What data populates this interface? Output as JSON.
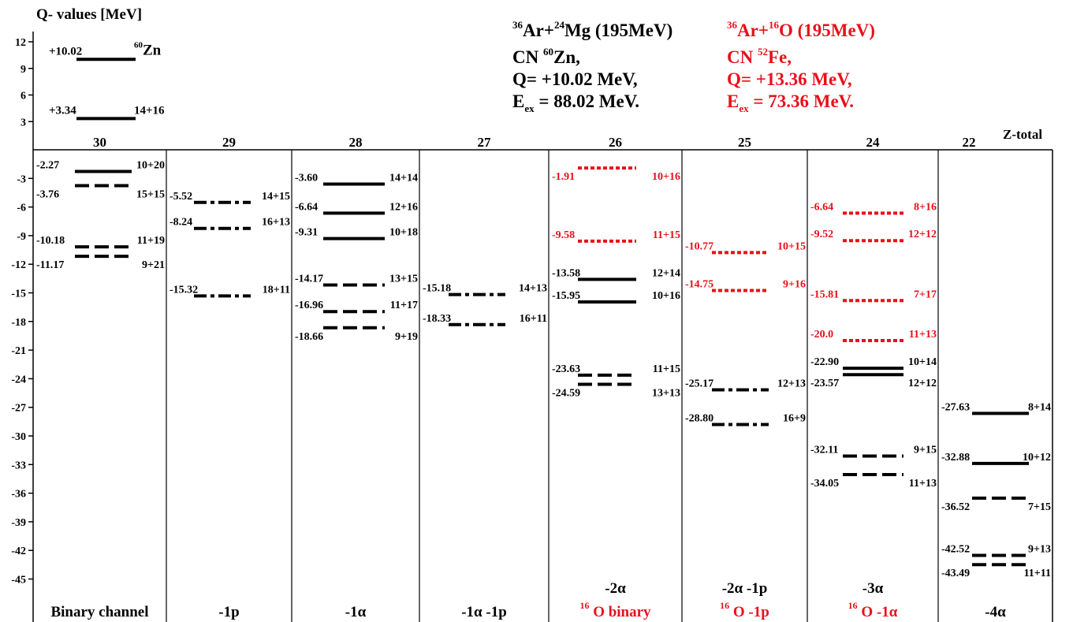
{
  "axis_title": "Q- values [MeV]",
  "z_total_label": "Z-total",
  "colors": {
    "black": "#000000",
    "red": "#e8101a"
  },
  "reaction_black": {
    "title": {
      "a_mass": "36",
      "a": "Ar+",
      "b_mass": "24",
      "b": "Mg (195MeV)"
    },
    "cn": {
      "prefix": "CN ",
      "mass": "60",
      "nucleus": "Zn,"
    },
    "q": "Q= +10.02 MeV,",
    "ex_main": "E",
    "ex_sub": "ex",
    "ex_rest": " = 88.02 MeV."
  },
  "reaction_red": {
    "title": {
      "a_mass": "36",
      "a": "Ar+",
      "b_mass": "16",
      "b": "O (195MeV)"
    },
    "cn": {
      "prefix": "CN ",
      "mass": "52",
      "nucleus": "Fe,"
    },
    "q": "Q= +13.36 MeV,",
    "ex_main": "E",
    "ex_sub": "ex",
    "ex_rest": " = 73.36 MeV."
  },
  "upper_levels": [
    {
      "q": 10.02,
      "value_label": "+10.02",
      "tag_mass": "60",
      "tag": "Zn",
      "style": "solid"
    },
    {
      "q": 3.34,
      "value_label": "+3.34",
      "tag": "14+16",
      "style": "solid"
    }
  ],
  "columns": [
    {
      "z": "30",
      "top_label": "",
      "bottom_label": "Binary channel",
      "bottom_color": "black",
      "bottom_mass": "",
      "levels": [
        {
          "q": -2.27,
          "label": "-2.27",
          "split": "10+20",
          "style": "solid",
          "color": "black",
          "lpos": "above"
        },
        {
          "q": -3.76,
          "label": "-3.76",
          "split": "15+15",
          "style": "dash",
          "color": "black",
          "lpos": "below"
        },
        {
          "q": -10.18,
          "label": "-10.18",
          "split": "11+19",
          "style": "dash",
          "color": "black",
          "lpos": "above"
        },
        {
          "q": -11.17,
          "label": "-11.17",
          "split": "9+21",
          "style": "dash",
          "color": "black",
          "lpos": "below"
        }
      ]
    },
    {
      "z": "29",
      "top_label": "",
      "bottom_label": "-1p",
      "bottom_color": "black",
      "bottom_mass": "",
      "levels": [
        {
          "q": -5.52,
          "label": "-5.52",
          "split": "14+15",
          "style": "dashdot",
          "color": "black",
          "lpos": "above"
        },
        {
          "q": -8.24,
          "label": "-8.24",
          "split": "16+13",
          "style": "dashdot",
          "color": "black",
          "lpos": "above"
        },
        {
          "q": -15.32,
          "label": "-15.32",
          "split": "18+11",
          "style": "dashdot",
          "color": "black",
          "lpos": "above"
        }
      ]
    },
    {
      "z": "28",
      "top_label": "",
      "bottom_label": "-1α",
      "bottom_color": "black",
      "bottom_mass": "",
      "levels": [
        {
          "q": -3.6,
          "label": "-3.60",
          "split": "14+14",
          "style": "solid",
          "color": "black",
          "lpos": "above"
        },
        {
          "q": -6.64,
          "label": "-6.64",
          "split": "12+16",
          "style": "solid",
          "color": "black",
          "lpos": "above"
        },
        {
          "q": -9.31,
          "label": "-9.31",
          "split": "10+18",
          "style": "solid",
          "color": "black",
          "lpos": "above"
        },
        {
          "q": -14.17,
          "label": "-14.17",
          "split": "13+15",
          "style": "dash",
          "color": "black",
          "lpos": "above"
        },
        {
          "q": -16.96,
          "label": "-16.96",
          "split": "11+17",
          "style": "dash",
          "color": "black",
          "lpos": "above"
        },
        {
          "q": -18.66,
          "label": "-18.66",
          "split": "9+19",
          "style": "dash",
          "color": "black",
          "lpos": "below"
        }
      ]
    },
    {
      "z": "27",
      "top_label": "",
      "bottom_label": "-1α -1p",
      "bottom_color": "black",
      "bottom_mass": "",
      "levels": [
        {
          "q": -15.18,
          "label": "-15.18",
          "split": "14+13",
          "style": "dashdot",
          "color": "black",
          "lpos": "above"
        },
        {
          "q": -18.33,
          "label": "-18.33",
          "split": "16+11",
          "style": "dashdot",
          "color": "black",
          "lpos": "above"
        }
      ]
    },
    {
      "z": "26",
      "top_label": "-2α",
      "bottom_label": "O binary",
      "bottom_color": "red",
      "bottom_mass": "16",
      "levels": [
        {
          "q": -1.91,
          "label": "-1.91",
          "split": "10+16",
          "style": "dot",
          "color": "red",
          "lpos": "below"
        },
        {
          "q": -9.58,
          "label": "-9.58",
          "split": "11+15",
          "style": "dot",
          "color": "red",
          "lpos": "above"
        },
        {
          "q": -13.58,
          "label": "-13.58",
          "split": "12+14",
          "style": "solid",
          "color": "black",
          "lpos": "above"
        },
        {
          "q": -15.95,
          "label": "-15.95",
          "split": "10+16",
          "style": "solid",
          "color": "black",
          "lpos": "above"
        },
        {
          "q": -23.63,
          "label": "-23.63",
          "split": "11+15",
          "style": "dash",
          "color": "black",
          "lpos": "above"
        },
        {
          "q": -24.59,
          "label": "-24.59",
          "split": "13+13",
          "style": "dash",
          "color": "black",
          "lpos": "below"
        }
      ]
    },
    {
      "z": "25",
      "top_label": "-2α -1p",
      "bottom_label": "O -1p",
      "bottom_color": "red",
      "bottom_mass": "16",
      "levels": [
        {
          "q": -10.77,
          "label": "-10.77",
          "split": "10+15",
          "style": "dot",
          "color": "red",
          "lpos": "above"
        },
        {
          "q": -14.75,
          "label": "-14.75",
          "split": "9+16",
          "style": "dot",
          "color": "red",
          "lpos": "above"
        },
        {
          "q": -25.17,
          "label": "-25.17",
          "split": "12+13",
          "style": "dashdot",
          "color": "black",
          "lpos": "above"
        },
        {
          "q": -28.8,
          "label": "-28.80",
          "split": "16+9",
          "style": "dashdot",
          "color": "black",
          "lpos": "above"
        }
      ]
    },
    {
      "z": "24",
      "top_label": "-3α",
      "bottom_label": "O -1α",
      "bottom_color": "red",
      "bottom_mass": "16",
      "levels": [
        {
          "q": -6.64,
          "label": "-6.64",
          "split": "8+16",
          "style": "dot",
          "color": "red",
          "lpos": "above"
        },
        {
          "q": -9.52,
          "label": "-9.52",
          "split": "12+12",
          "style": "dot",
          "color": "red",
          "lpos": "above"
        },
        {
          "q": -15.81,
          "label": "-15.81",
          "split": "7+17",
          "style": "dot",
          "color": "red",
          "lpos": "above"
        },
        {
          "q": -20.0,
          "label": "-20.0",
          "split": "11+13",
          "style": "dot",
          "color": "red",
          "lpos": "above"
        },
        {
          "q": -22.9,
          "label": "-22.90",
          "split": "10+14",
          "style": "solid",
          "color": "black",
          "lpos": "above"
        },
        {
          "q": -23.57,
          "label": "-23.57",
          "split": "12+12",
          "style": "solid",
          "color": "black",
          "lpos": "below"
        },
        {
          "q": -32.11,
          "label": "-32.11",
          "split": "9+15",
          "style": "dash",
          "color": "black",
          "lpos": "above"
        },
        {
          "q": -34.05,
          "label": "-34.05",
          "split": "11+13",
          "style": "dash",
          "color": "black",
          "lpos": "below"
        }
      ]
    },
    {
      "z": "22",
      "top_label": "",
      "bottom_label": "-4α",
      "bottom_color": "black",
      "bottom_mass": "",
      "levels": [
        {
          "q": -27.63,
          "label": "-27.63",
          "split": "8+14",
          "style": "solid",
          "color": "black",
          "lpos": "above"
        },
        {
          "q": -32.88,
          "label": "-32.88",
          "split": "10+12",
          "style": "solid",
          "color": "black",
          "lpos": "above"
        },
        {
          "q": -36.52,
          "label": "-36.52",
          "split": "7+15",
          "style": "dash",
          "color": "black",
          "lpos": "below"
        },
        {
          "q": -42.52,
          "label": "-42.52",
          "split": "9+13",
          "style": "dash",
          "color": "black",
          "lpos": "above"
        },
        {
          "q": -43.49,
          "label": "-43.49",
          "split": "11+11",
          "style": "dash",
          "color": "black",
          "lpos": "below"
        }
      ]
    }
  ],
  "y_ticks_upper": [
    12,
    9,
    6,
    3
  ],
  "y_ticks_lower": [
    -3,
    -6,
    -9,
    -12,
    -15,
    -18,
    -21,
    -24,
    -27,
    -30,
    -33,
    -36,
    -39,
    -42,
    -45
  ]
}
